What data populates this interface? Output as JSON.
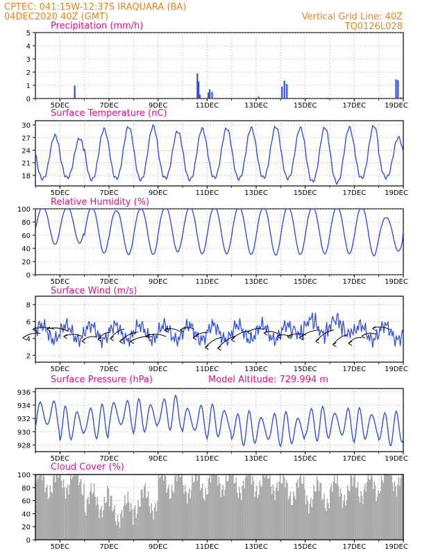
{
  "header": {
    "left_line1": "CPTEC:   041:15W-12:37S   IRAQUARA (BA)",
    "left_line2": "04DEC2020 40Z (GMT)",
    "right_line1": "Vertical Grid Line: 40Z",
    "right_line2": "TQ0126L028"
  },
  "colors": {
    "header": "#f0811b",
    "title": "#e0108a",
    "line": "#2f4fe8",
    "cloud": "#a9a9a9",
    "grid": "#9a9a9a"
  },
  "x_tick_labels": [
    "5DEC",
    "7DEC",
    "9DEC",
    "11DEC",
    "13DEC",
    "15DEC",
    "17DEC",
    "19DEC"
  ],
  "chart_data": [
    {
      "type": "bar",
      "title": "Precipitation (mm/h)",
      "ylim": [
        0,
        5
      ],
      "yticks": [
        0,
        1,
        2,
        3,
        4,
        5
      ],
      "xrange_days": [
        4.0,
        19.0
      ],
      "grid": true,
      "points": [
        {
          "x": 4.3,
          "y": 0.04
        },
        {
          "x": 5.0,
          "y": 0.03
        },
        {
          "x": 5.6,
          "y": 0.98
        },
        {
          "x": 6.2,
          "y": 0.03
        },
        {
          "x": 7.1,
          "y": 0.04
        },
        {
          "x": 8.0,
          "y": 0.03
        },
        {
          "x": 9.2,
          "y": 0.04
        },
        {
          "x": 10.2,
          "y": 0.05
        },
        {
          "x": 10.6,
          "y": 1.9
        },
        {
          "x": 10.65,
          "y": 1.3
        },
        {
          "x": 10.7,
          "y": 0.3
        },
        {
          "x": 11.05,
          "y": 0.45
        },
        {
          "x": 11.1,
          "y": 0.7
        },
        {
          "x": 11.2,
          "y": 0.5
        },
        {
          "x": 11.9,
          "y": 0.05
        },
        {
          "x": 13.1,
          "y": 0.15
        },
        {
          "x": 14.05,
          "y": 0.9
        },
        {
          "x": 14.15,
          "y": 1.35
        },
        {
          "x": 14.25,
          "y": 1.1
        },
        {
          "x": 14.9,
          "y": 0.05
        },
        {
          "x": 15.9,
          "y": 0.06
        },
        {
          "x": 16.8,
          "y": 0.05
        },
        {
          "x": 17.7,
          "y": 0.04
        },
        {
          "x": 18.7,
          "y": 1.45
        },
        {
          "x": 18.78,
          "y": 1.4
        },
        {
          "x": 18.9,
          "y": 0.1
        }
      ]
    },
    {
      "type": "line",
      "title": "Surface Temperature (nC)",
      "ylim": [
        15.5,
        31
      ],
      "yticks": [
        18,
        21,
        24,
        27,
        30
      ],
      "xrange_days": [
        4.0,
        19.0
      ],
      "grid": true,
      "phase_days": 4.0,
      "daily": [
        {
          "min": 17.2,
          "max": 27.5
        },
        {
          "min": 17.5,
          "max": 26.8
        },
        {
          "min": 17.0,
          "max": 29.0
        },
        {
          "min": 17.3,
          "max": 29.6
        },
        {
          "min": 17.0,
          "max": 29.7
        },
        {
          "min": 17.4,
          "max": 28.5
        },
        {
          "min": 17.0,
          "max": 29.1
        },
        {
          "min": 17.5,
          "max": 29.2
        },
        {
          "min": 17.2,
          "max": 29.3
        },
        {
          "min": 17.5,
          "max": 29.6
        },
        {
          "min": 17.3,
          "max": 29.3
        },
        {
          "min": 16.6,
          "max": 29.4
        },
        {
          "min": 16.3,
          "max": 29.4
        },
        {
          "min": 17.4,
          "max": 29.8
        },
        {
          "min": 17.5,
          "max": 27.0
        }
      ],
      "end_value": 23.5
    },
    {
      "type": "line",
      "title": "Relative Humidity (%)",
      "ylim": [
        0,
        100
      ],
      "yticks": [
        0,
        20,
        40,
        60,
        80,
        100
      ],
      "xrange_days": [
        4.0,
        19.0
      ],
      "grid": true,
      "daily": [
        {
          "min": 45,
          "max": 100
        },
        {
          "min": 47,
          "max": 100
        },
        {
          "min": 32,
          "max": 100
        },
        {
          "min": 30,
          "max": 95
        },
        {
          "min": 30,
          "max": 98
        },
        {
          "min": 34,
          "max": 100
        },
        {
          "min": 31,
          "max": 100
        },
        {
          "min": 31,
          "max": 100
        },
        {
          "min": 30,
          "max": 100
        },
        {
          "min": 29,
          "max": 100
        },
        {
          "min": 30,
          "max": 100
        },
        {
          "min": 31,
          "max": 100
        },
        {
          "min": 31,
          "max": 100
        },
        {
          "min": 28,
          "max": 100
        },
        {
          "min": 35,
          "max": 85
        }
      ],
      "end_value": 68
    },
    {
      "type": "line",
      "title": "Surface Wind (m/s)",
      "ylim": [
        1.2,
        9
      ],
      "yticks": [
        2,
        4,
        6,
        8
      ],
      "xrange_days": [
        4.0,
        19.0
      ],
      "grid": true,
      "speed_mean": 4.7,
      "vector_count": 26
    },
    {
      "type": "line",
      "title": "Surface Pressure (hPa)",
      "subtitle": "Model Altitude: 729.994 m",
      "ylim": [
        927,
        936.5
      ],
      "yticks": [
        928,
        930,
        932,
        934,
        936
      ],
      "xrange_days": [
        4.0,
        19.0
      ],
      "grid": true,
      "daily_means": [
        932.6,
        931.2,
        931.5,
        932.6,
        932.3,
        932.8,
        931.8,
        931.5,
        930.5,
        930.5,
        930.4,
        931.2,
        931.2,
        931.0,
        930.5
      ]
    },
    {
      "type": "bar",
      "title": "Cloud Cover (%)",
      "ylim": [
        0,
        100
      ],
      "yticks": [
        0,
        20,
        40,
        60,
        80,
        100
      ],
      "xrange_days": [
        4.0,
        19.0
      ],
      "grid": true,
      "daily_mean": [
        88,
        92,
        60,
        45,
        60,
        88,
        85,
        92,
        88,
        90,
        78,
        70,
        76,
        82,
        96
      ]
    }
  ]
}
